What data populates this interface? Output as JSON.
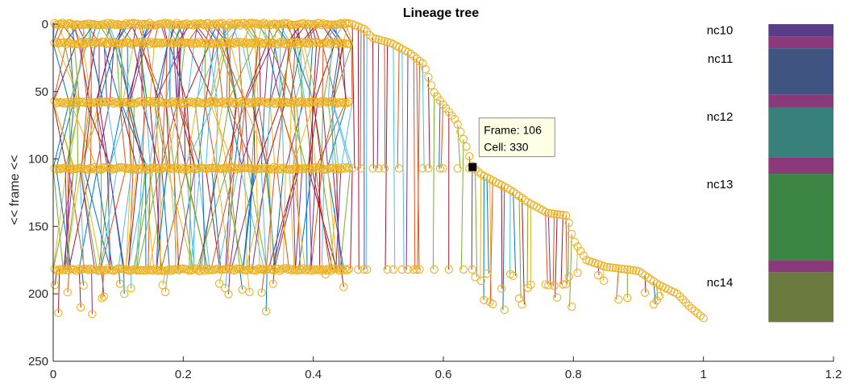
{
  "chart_data": {
    "type": "scatter",
    "title": "Lineage tree",
    "xlabel": "",
    "ylabel": "<< frame <<",
    "xlim": [
      0,
      1.2
    ],
    "ylim": [
      0,
      250
    ],
    "y_reversed": true,
    "xticks": [
      "0",
      "0.2",
      "0.4",
      "0.6",
      "0.8",
      "1",
      "1.2"
    ],
    "yticks": [
      "0",
      "50",
      "100",
      "150",
      "200",
      "250"
    ],
    "grid": false,
    "marker_color": "#EDB120",
    "line_colors": [
      "#0072BD",
      "#D95319",
      "#EDB120",
      "#7E2F8E",
      "#77AC30",
      "#4DBEEE",
      "#A2142F"
    ],
    "division_frames": [
      0,
      14,
      58,
      107,
      182
    ],
    "division_x_end": 0.46,
    "staircase": [
      [
        0.46,
        0
      ],
      [
        0.48,
        4
      ],
      [
        0.49,
        10
      ],
      [
        0.52,
        14
      ],
      [
        0.55,
        22
      ],
      [
        0.57,
        30
      ],
      [
        0.585,
        50
      ],
      [
        0.6,
        60
      ],
      [
        0.62,
        72
      ],
      [
        0.635,
        90
      ],
      [
        0.645,
        106
      ],
      [
        0.66,
        112
      ],
      [
        0.7,
        122
      ],
      [
        0.73,
        132
      ],
      [
        0.76,
        140
      ],
      [
        0.79,
        142
      ],
      [
        0.8,
        160
      ],
      [
        0.82,
        175
      ],
      [
        0.85,
        180
      ],
      [
        0.9,
        183
      ],
      [
        0.93,
        193
      ],
      [
        0.96,
        200
      ],
      [
        0.98,
        210
      ],
      [
        1.0,
        218
      ]
    ],
    "datatip": {
      "x": 0.645,
      "y": 106,
      "lines": [
        "Frame: 106",
        "Cell: 330"
      ]
    },
    "nuclear_cycles": [
      {
        "label": "nc10",
        "label_frame": 4,
        "color": "#5A3D87",
        "start": 0,
        "end": 9
      },
      {
        "label": "",
        "color": "#8A3A7A",
        "start": 9,
        "end": 18
      },
      {
        "label": "nc11",
        "label_frame": 25,
        "color": "#3F5481",
        "start": 18,
        "end": 52
      },
      {
        "label": "",
        "color": "#8A3A7A",
        "start": 52,
        "end": 62
      },
      {
        "label": "nc12",
        "label_frame": 68,
        "color": "#38807A",
        "start": 62,
        "end": 99
      },
      {
        "label": "",
        "color": "#8A3A7A",
        "start": 99,
        "end": 111
      },
      {
        "label": "nc13",
        "label_frame": 118,
        "color": "#3D8545",
        "start": 111,
        "end": 175
      },
      {
        "label": "",
        "color": "#8A3A7A",
        "start": 175,
        "end": 184
      },
      {
        "label": "nc14",
        "label_frame": 191,
        "color": "#6B7B40",
        "start": 184,
        "end": 221
      }
    ],
    "nc_bar_x": [
      1.1,
      1.2
    ]
  }
}
